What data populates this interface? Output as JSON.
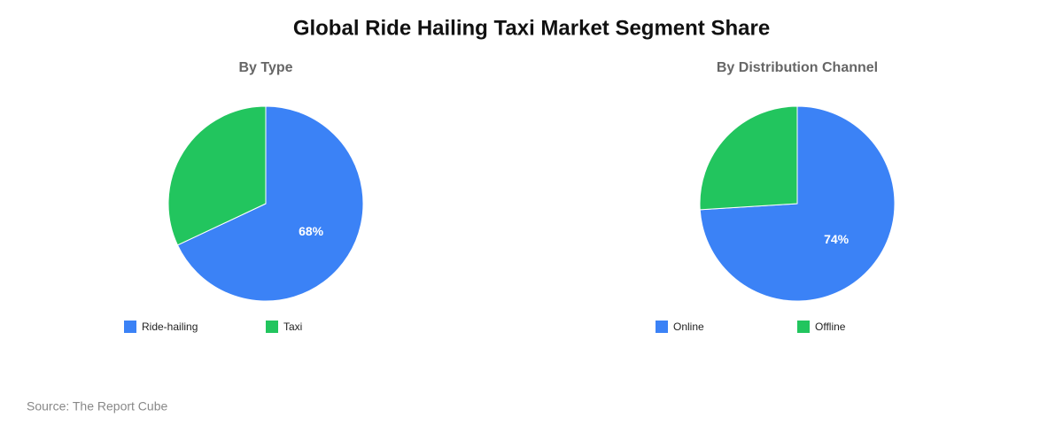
{
  "title": "Global Ride Hailing Taxi Market Segment Share",
  "source": "Source: The Report Cube",
  "chart_data": [
    {
      "type": "pie",
      "title": "By Type",
      "categories": [
        "Ride-hailing",
        "Taxi"
      ],
      "values": [
        68,
        32
      ],
      "value_labels": [
        "68%",
        null
      ],
      "colors": [
        "#3b82f6",
        "#22c55e"
      ]
    },
    {
      "type": "pie",
      "title": "By Distribution Channel",
      "categories": [
        "Online",
        "Offline"
      ],
      "values": [
        74,
        26
      ],
      "value_labels": [
        "74%",
        null
      ],
      "colors": [
        "#3b82f6",
        "#22c55e"
      ]
    }
  ]
}
